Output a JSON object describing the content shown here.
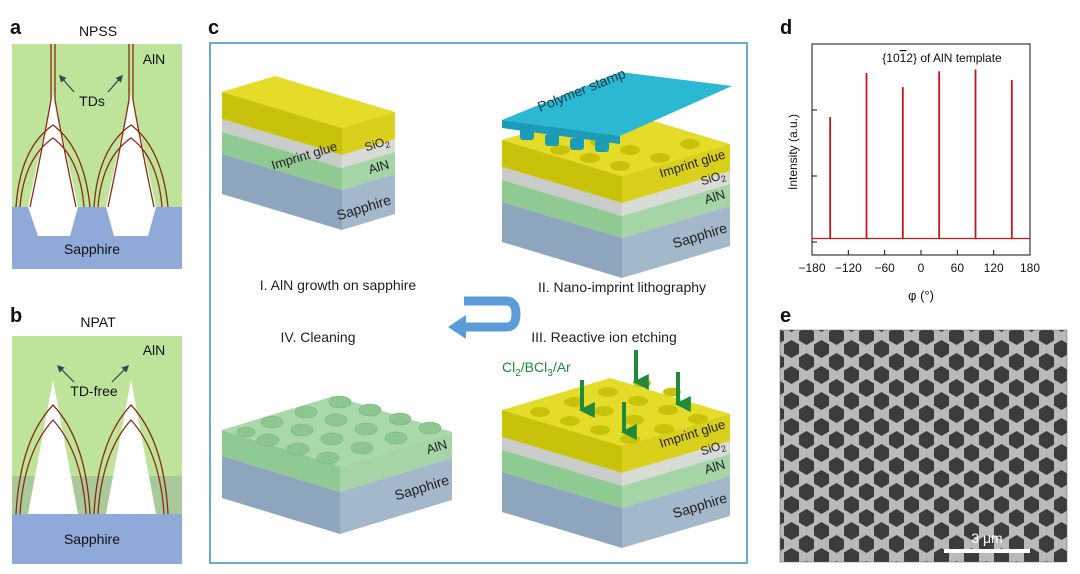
{
  "panels": {
    "a": {
      "letter": "a",
      "title": "NPSS",
      "label_top": "AlN",
      "label_tds": "TDs",
      "label_bottom": "Sapphire"
    },
    "b": {
      "letter": "b",
      "title": "NPAT",
      "label_top": "AlN",
      "label_tds": "TD-free",
      "label_bottom": "Sapphire"
    },
    "c": {
      "letter": "c",
      "step1": "I. AlN growth on sapphire",
      "step2": "II. Nano-imprint lithography",
      "step3": "III. Reactive ion etching",
      "step4": "IV. Cleaning",
      "gas_cl": "Cl",
      "gas_sub1": "2",
      "gas_bcl": "/BCl",
      "gas_sub2": "3",
      "gas_ar": "/Ar",
      "stamp": "Polymer stamp",
      "layer_glue": "Imprint glue",
      "layer_sio2": "SiO",
      "layer_sio2_sub": "2",
      "layer_aln": "AlN",
      "layer_sapphire": "Sapphire"
    },
    "d": {
      "letter": "d"
    },
    "e": {
      "letter": "e",
      "scale_bar": "3 μm"
    }
  },
  "chart_data": {
    "type": "line",
    "title": "{10¯12} of AlN template",
    "title_prefix": "{10",
    "title_bar": "1",
    "title_suffix": "2} of AlN template",
    "xlabel": "φ (°)",
    "ylabel": "Intensity (a.u.)",
    "xlim": [
      -180,
      180
    ],
    "ylim": [
      0,
      1
    ],
    "xticks": [
      -180,
      -120,
      -60,
      0,
      60,
      120,
      180
    ],
    "xtick_labels": [
      "−180",
      "−120",
      "−60",
      "0",
      "60",
      "120",
      "180"
    ],
    "series": [
      {
        "peaks_x": [
          -150,
          -90,
          -30,
          30,
          90,
          150
        ],
        "peaks_y": [
          0.71,
          0.96,
          0.88,
          0.97,
          0.98,
          0.92
        ]
      }
    ],
    "baseline": 0.02,
    "color": "#c0181c"
  }
}
